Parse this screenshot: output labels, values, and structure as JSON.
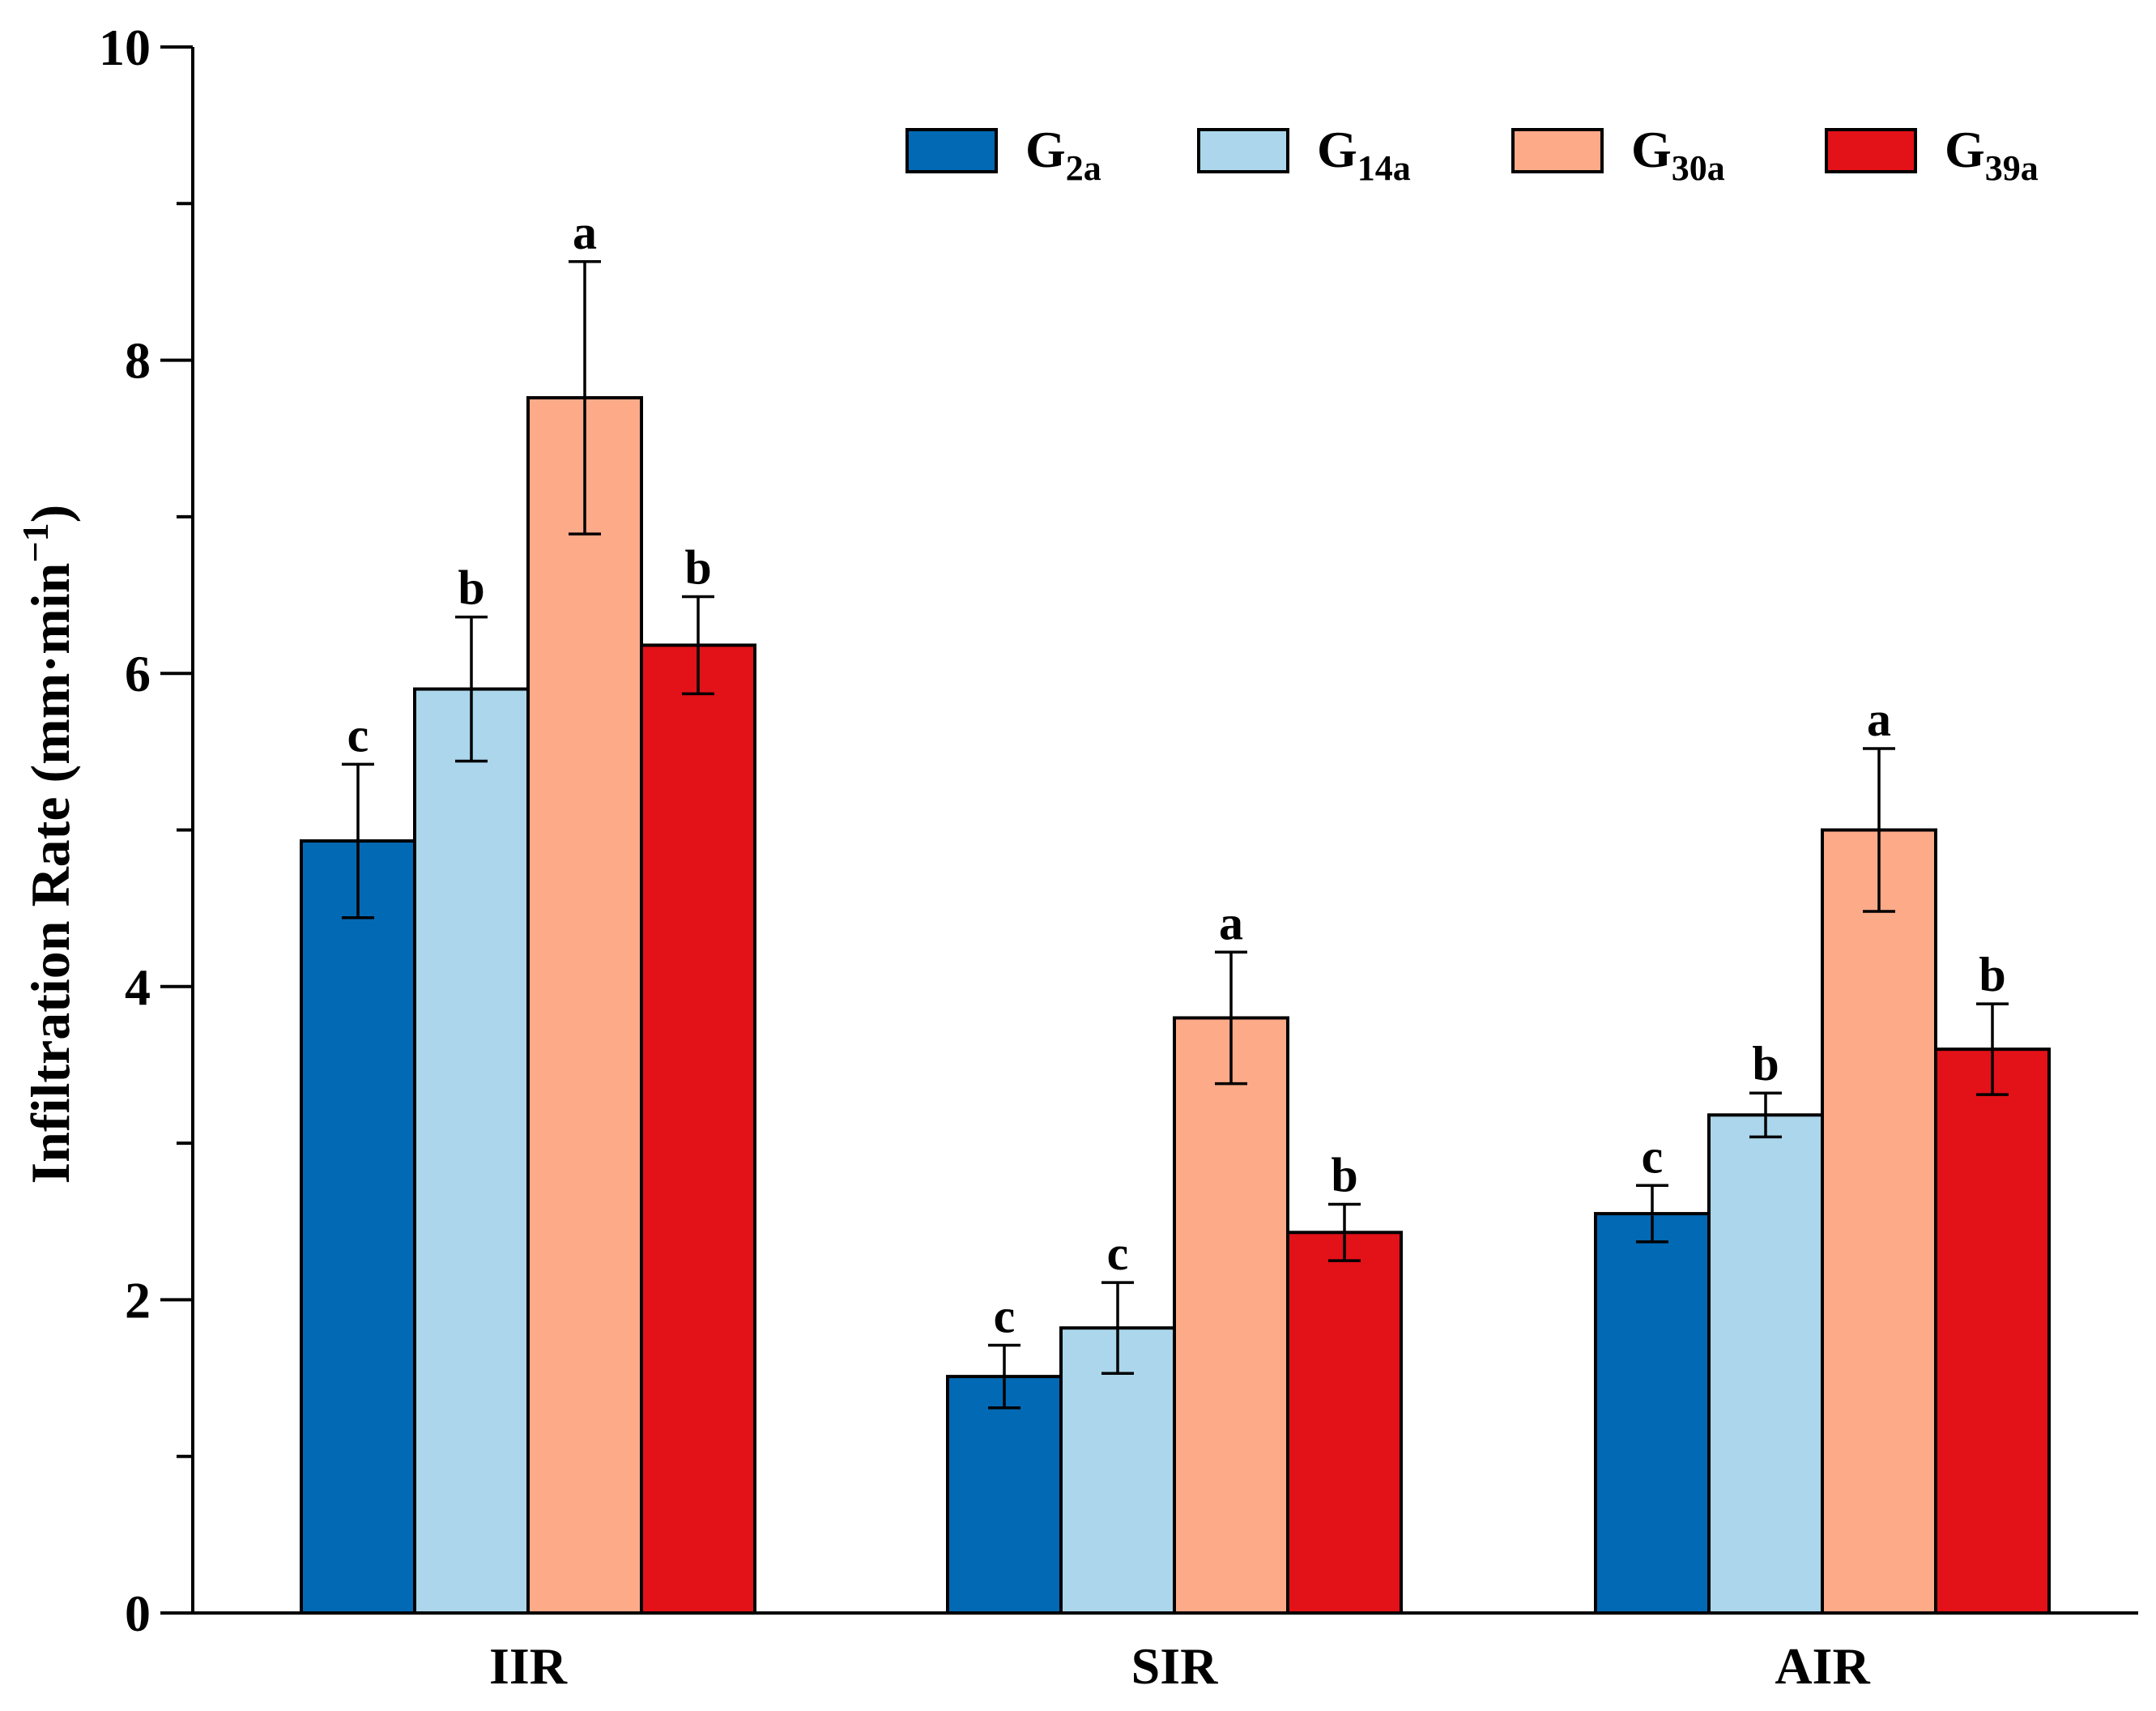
{
  "chart_data": {
    "type": "bar",
    "title": "",
    "xlabel": "",
    "ylabel": "Infiltration Rate (mm·min",
    "ylabel_sup": "−1",
    "ylabel_close": ")",
    "ylim": [
      0,
      10
    ],
    "y_major_ticks": [
      0,
      2,
      4,
      6,
      8,
      10
    ],
    "y_major_tick_labels": [
      "0",
      "2",
      "4",
      "6",
      "8",
      "10"
    ],
    "y_minor_ticks": [
      1,
      3,
      5,
      7,
      9
    ],
    "categories": [
      "IIR",
      "SIR",
      "AIR"
    ],
    "legend_position": "top-right",
    "series": [
      {
        "name": "G2a",
        "label_main": "G",
        "label_sub": "2a",
        "color": "#0269B4",
        "values": [
          4.93,
          1.51,
          2.55
        ],
        "errors": [
          0.49,
          0.2,
          0.18
        ],
        "letters": [
          "c",
          "c",
          "c"
        ]
      },
      {
        "name": "G14a",
        "label_main": "G",
        "label_sub": "14a",
        "color": "#ABD6EB",
        "values": [
          5.9,
          1.82,
          3.18
        ],
        "errors": [
          0.46,
          0.29,
          0.14
        ],
        "letters": [
          "b",
          "c",
          "b"
        ]
      },
      {
        "name": "G30a",
        "label_main": "G",
        "label_sub": "30a",
        "color": "#FDAA89",
        "values": [
          7.76,
          3.8,
          5.0
        ],
        "errors": [
          0.87,
          0.42,
          0.52
        ],
        "letters": [
          "a",
          "a",
          "a"
        ]
      },
      {
        "name": "G39a",
        "label_main": "G",
        "label_sub": "39a",
        "color": "#E31118",
        "values": [
          6.18,
          2.43,
          3.6
        ],
        "errors": [
          0.31,
          0.18,
          0.29
        ],
        "letters": [
          "b",
          "b",
          "b"
        ]
      }
    ]
  }
}
